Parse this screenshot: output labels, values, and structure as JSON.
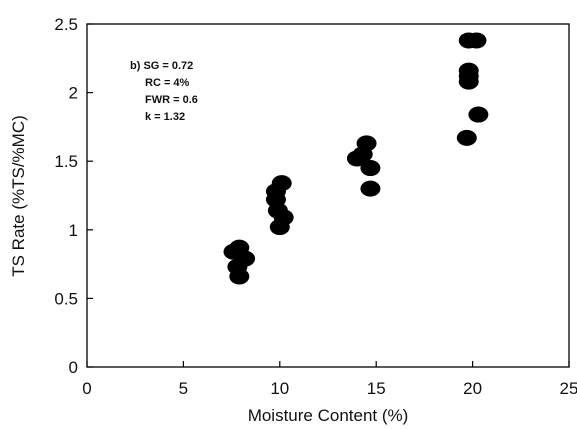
{
  "chart_data": {
    "type": "scatter",
    "title": "",
    "xlabel": "Moisture Content (%)",
    "ylabel": "TS Rate (%TS/%MC)",
    "xlim": [
      0,
      25
    ],
    "ylim": [
      0,
      2.5
    ],
    "xticks": [
      0,
      5,
      10,
      15,
      20,
      25
    ],
    "yticks": [
      0,
      0.5,
      1,
      1.5,
      2,
      2.5
    ],
    "xtick_labels": [
      "0",
      "5",
      "10",
      "15",
      "20",
      "25"
    ],
    "ytick_labels": [
      "0",
      "0.5",
      "1",
      "1.5",
      "2",
      "2.5"
    ],
    "grid": false,
    "marker_color": "#000000",
    "annotations": [
      "b) SG = 0.72",
      "RC = 4%",
      "FWR = 0.6",
      "k = 1.32"
    ],
    "points": [
      {
        "x": 7.6,
        "y": 0.84
      },
      {
        "x": 7.9,
        "y": 0.87
      },
      {
        "x": 8.2,
        "y": 0.79
      },
      {
        "x": 7.8,
        "y": 0.73
      },
      {
        "x": 7.9,
        "y": 0.66
      },
      {
        "x": 9.8,
        "y": 1.28
      },
      {
        "x": 10.1,
        "y": 1.34
      },
      {
        "x": 9.8,
        "y": 1.22
      },
      {
        "x": 9.9,
        "y": 1.14
      },
      {
        "x": 10.2,
        "y": 1.09
      },
      {
        "x": 10.0,
        "y": 1.02
      },
      {
        "x": 14.0,
        "y": 1.52
      },
      {
        "x": 14.5,
        "y": 1.63
      },
      {
        "x": 14.3,
        "y": 1.55
      },
      {
        "x": 14.7,
        "y": 1.45
      },
      {
        "x": 14.7,
        "y": 1.3
      },
      {
        "x": 19.8,
        "y": 2.38
      },
      {
        "x": 20.2,
        "y": 2.38
      },
      {
        "x": 19.8,
        "y": 2.16
      },
      {
        "x": 19.8,
        "y": 2.12
      },
      {
        "x": 19.8,
        "y": 2.08
      },
      {
        "x": 20.3,
        "y": 1.84
      },
      {
        "x": 19.7,
        "y": 1.67
      }
    ]
  }
}
